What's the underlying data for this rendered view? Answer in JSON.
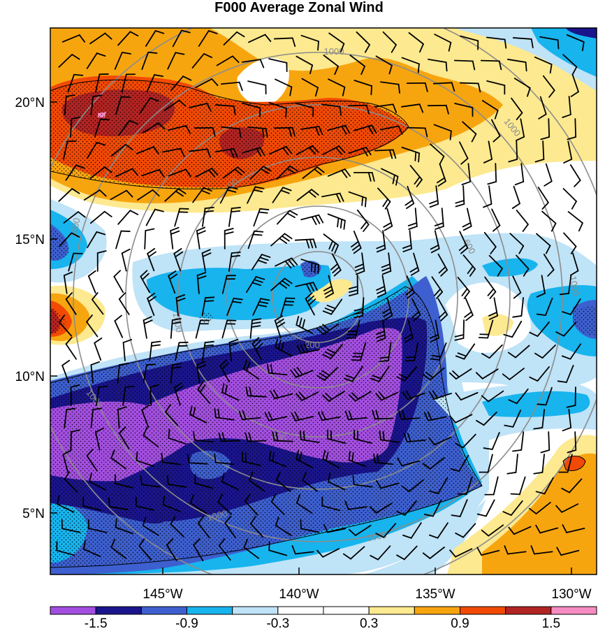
{
  "title": "F000 Average Zonal Wind",
  "axes": {
    "x_ticks": [
      "145°W",
      "140°W",
      "135°W",
      "130°W"
    ],
    "y_ticks": [
      "20°N",
      "15°N",
      "10°N",
      "5°N"
    ]
  },
  "colorbar": {
    "labels": [
      "-1.5",
      "-0.9",
      "-0.3",
      "0.3",
      "0.9",
      "1.5"
    ],
    "colors": [
      "#a34ee0",
      "#1a158c",
      "#3d5fcf",
      "#17b4ee",
      "#bfe3f7",
      "#ffffff",
      "#ffffff",
      "#fde98f",
      "#f7a50f",
      "#f24a05",
      "#b12423",
      "#f58cc2"
    ]
  },
  "range_rings": {
    "labels": [
      "200",
      "600",
      "600",
      "600",
      "1000",
      "1000",
      "1000",
      "1000",
      "1000",
      "1000",
      "1000",
      "1000"
    ]
  },
  "fill_colors": {
    "purple": "#a34ee0",
    "navy": "#1a158c",
    "blue": "#3d5fcf",
    "cyan": "#17b4ee",
    "lightblue": "#bfe3f7",
    "yellow": "#fde98f",
    "orange": "#f7a50f",
    "redorange": "#f24a05",
    "darkred": "#b12423",
    "pink": "#f58cc2"
  }
}
